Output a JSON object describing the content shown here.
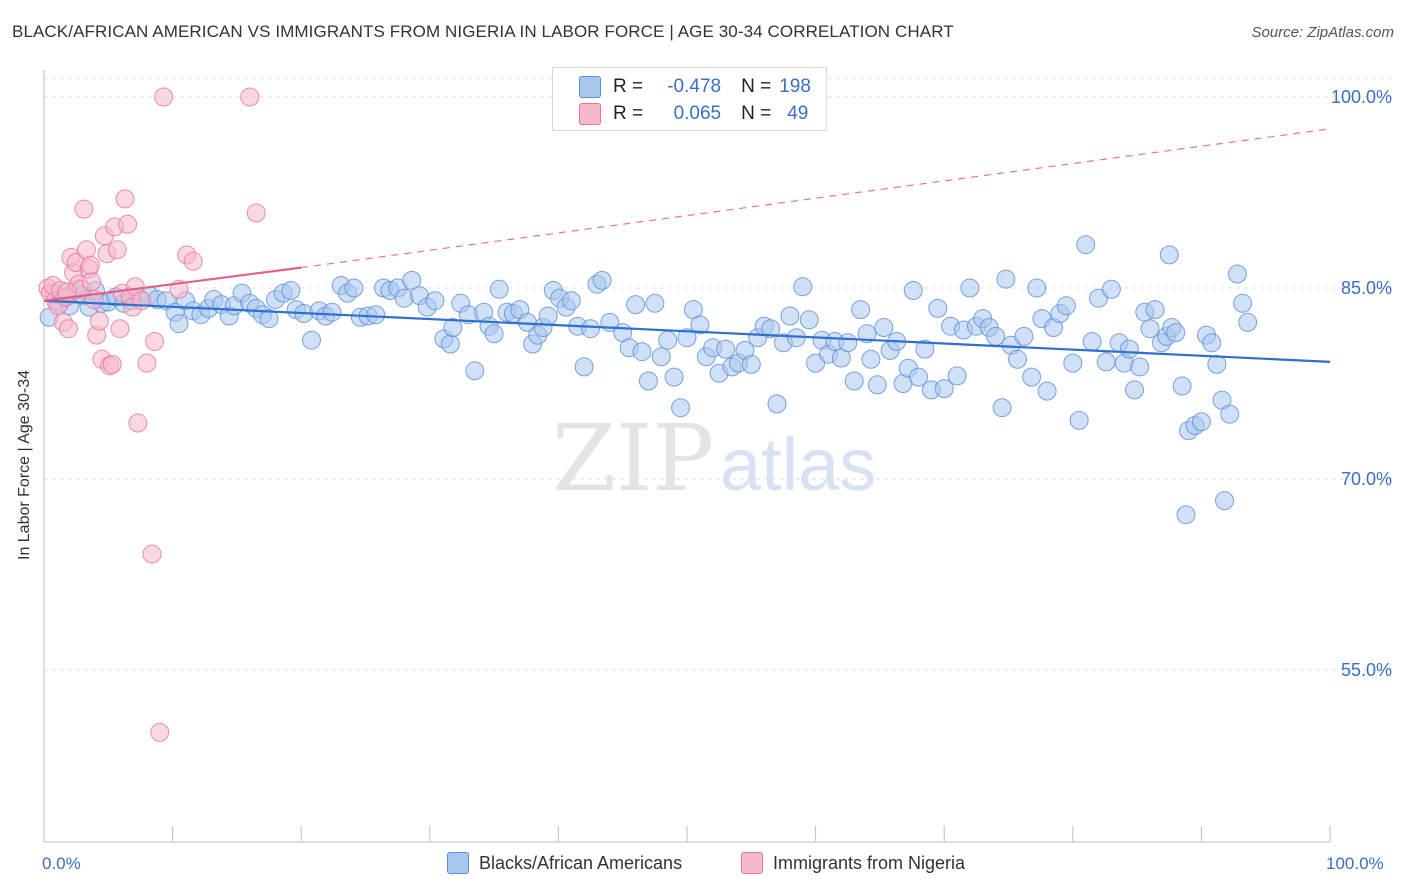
{
  "title": "BLACK/AFRICAN AMERICAN VS IMMIGRANTS FROM NIGERIA IN LABOR FORCE | AGE 30-34 CORRELATION CHART",
  "source": "Source: ZipAtlas.com",
  "watermark": {
    "zip": "ZIP",
    "atlas": "atlas"
  },
  "legend_top": {
    "rows": [
      {
        "r_label": "R =",
        "r_value": "-0.478",
        "n_label": "N =",
        "n_value": "198",
        "color": "#a9c6ee"
      },
      {
        "r_label": "R =",
        "r_value": "0.065",
        "n_label": "N =",
        "n_value": "49",
        "color": "#f6b8cb"
      }
    ]
  },
  "legend_bottom": {
    "items": [
      {
        "label": "Blacks/African Americans",
        "color": "#a9c6ee"
      },
      {
        "label": "Immigrants from Nigeria",
        "color": "#f6b8cb"
      }
    ]
  },
  "x_axis": {
    "min_label": "0.0%",
    "max_label": "100.0%"
  },
  "y_axis_label": "In Labor Force | Age 30-34",
  "chart_data": {
    "type": "scatter",
    "title": "BLACK/AFRICAN AMERICAN VS IMMIGRANTS FROM NIGERIA IN LABOR FORCE | AGE 30-34 CORRELATION CHART",
    "xlabel": "",
    "ylabel": "In Labor Force | Age 30-34",
    "xlim": [
      0,
      100
    ],
    "ylim": [
      40,
      101
    ],
    "yticks": [
      {
        "value": 100,
        "label": "100.0%"
      },
      {
        "value": 85,
        "label": "85.0%"
      },
      {
        "value": 70,
        "label": "70.0%"
      },
      {
        "value": 55,
        "label": "55.0%"
      }
    ],
    "grid": true,
    "legend_position": "bottom",
    "series": [
      {
        "name": "Blacks/African Americans",
        "color": "#5b8fd6",
        "fill": "#a9c6ee",
        "trend": {
          "x": [
            0,
            100
          ],
          "y": [
            84.0,
            79.2
          ]
        },
        "points": [
          [
            0.4,
            82.7
          ],
          [
            0.8,
            84.5
          ],
          [
            1.2,
            83.8
          ],
          [
            1.6,
            84.2
          ],
          [
            2.0,
            83.6
          ],
          [
            2.4,
            84.8
          ],
          [
            3.0,
            84.4
          ],
          [
            3.5,
            83.5
          ],
          [
            4.0,
            84.8
          ],
          [
            4.5,
            83.8
          ],
          [
            5.0,
            83.9
          ],
          [
            5.6,
            84.3
          ],
          [
            6.2,
            83.8
          ],
          [
            6.8,
            84.0
          ],
          [
            7.4,
            84.2
          ],
          [
            8.2,
            84.4
          ],
          [
            8.8,
            84.1
          ],
          [
            9.5,
            84.0
          ],
          [
            10.2,
            83.1
          ],
          [
            10.5,
            82.2
          ],
          [
            11.0,
            84.0
          ],
          [
            11.6,
            83.2
          ],
          [
            12.2,
            82.9
          ],
          [
            12.8,
            83.4
          ],
          [
            13.2,
            84.1
          ],
          [
            13.8,
            83.7
          ],
          [
            14.4,
            82.8
          ],
          [
            14.8,
            83.6
          ],
          [
            15.4,
            84.6
          ],
          [
            16.0,
            83.8
          ],
          [
            16.5,
            83.4
          ],
          [
            17.0,
            82.9
          ],
          [
            17.5,
            82.6
          ],
          [
            18.0,
            84.1
          ],
          [
            18.6,
            84.6
          ],
          [
            19.2,
            84.8
          ],
          [
            19.6,
            83.3
          ],
          [
            20.2,
            83.0
          ],
          [
            20.8,
            80.9
          ],
          [
            21.4,
            83.2
          ],
          [
            21.9,
            82.8
          ],
          [
            22.4,
            83.1
          ],
          [
            23.1,
            85.2
          ],
          [
            23.6,
            84.6
          ],
          [
            24.1,
            85.0
          ],
          [
            24.6,
            82.7
          ],
          [
            25.2,
            82.8
          ],
          [
            25.8,
            82.9
          ],
          [
            26.4,
            85.0
          ],
          [
            26.9,
            84.8
          ],
          [
            27.5,
            85.0
          ],
          [
            28.0,
            84.2
          ],
          [
            28.6,
            85.6
          ],
          [
            29.2,
            84.4
          ],
          [
            29.8,
            83.5
          ],
          [
            30.4,
            84.0
          ],
          [
            31.1,
            81.0
          ],
          [
            31.6,
            80.6
          ],
          [
            31.8,
            81.9
          ],
          [
            32.4,
            83.8
          ],
          [
            33.0,
            82.9
          ],
          [
            33.5,
            78.5
          ],
          [
            34.2,
            83.1
          ],
          [
            34.6,
            82.0
          ],
          [
            35.0,
            81.4
          ],
          [
            35.4,
            84.9
          ],
          [
            36.0,
            83.1
          ],
          [
            36.5,
            83.0
          ],
          [
            37.0,
            83.3
          ],
          [
            37.6,
            82.3
          ],
          [
            38.0,
            80.6
          ],
          [
            38.4,
            81.3
          ],
          [
            38.8,
            81.9
          ],
          [
            39.2,
            82.8
          ],
          [
            39.6,
            84.8
          ],
          [
            40.1,
            84.2
          ],
          [
            40.6,
            83.5
          ],
          [
            41.0,
            84.0
          ],
          [
            41.5,
            82.0
          ],
          [
            42.0,
            78.8
          ],
          [
            42.5,
            81.8
          ],
          [
            43.0,
            85.3
          ],
          [
            43.4,
            85.6
          ],
          [
            44.0,
            82.3
          ],
          [
            45.0,
            81.5
          ],
          [
            45.5,
            80.3
          ],
          [
            46.0,
            83.7
          ],
          [
            46.5,
            80.0
          ],
          [
            47.0,
            77.7
          ],
          [
            47.5,
            83.8
          ],
          [
            48.0,
            79.6
          ],
          [
            48.5,
            80.9
          ],
          [
            49.0,
            78.0
          ],
          [
            49.5,
            75.6
          ],
          [
            50.0,
            81.1
          ],
          [
            50.5,
            83.3
          ],
          [
            51.0,
            82.1
          ],
          [
            51.5,
            79.6
          ],
          [
            52.0,
            80.3
          ],
          [
            52.5,
            78.3
          ],
          [
            53.0,
            80.2
          ],
          [
            53.5,
            78.8
          ],
          [
            54.0,
            79.1
          ],
          [
            54.5,
            80.1
          ],
          [
            55.0,
            79.0
          ],
          [
            55.5,
            81.1
          ],
          [
            56.0,
            82.0
          ],
          [
            56.5,
            81.8
          ],
          [
            57.0,
            75.9
          ],
          [
            57.5,
            80.7
          ],
          [
            58.0,
            82.8
          ],
          [
            58.5,
            81.1
          ],
          [
            59.0,
            85.1
          ],
          [
            59.5,
            82.5
          ],
          [
            60.0,
            79.1
          ],
          [
            60.5,
            80.9
          ],
          [
            61.0,
            79.8
          ],
          [
            61.5,
            80.8
          ],
          [
            62.0,
            79.5
          ],
          [
            62.5,
            80.7
          ],
          [
            63.0,
            77.7
          ],
          [
            63.5,
            83.3
          ],
          [
            64.0,
            81.4
          ],
          [
            64.3,
            79.4
          ],
          [
            64.8,
            77.4
          ],
          [
            65.3,
            81.9
          ],
          [
            65.8,
            80.1
          ],
          [
            66.3,
            80.8
          ],
          [
            66.8,
            77.5
          ],
          [
            67.2,
            78.7
          ],
          [
            67.6,
            84.8
          ],
          [
            68.0,
            78.0
          ],
          [
            68.5,
            80.2
          ],
          [
            69.0,
            77.0
          ],
          [
            69.5,
            83.4
          ],
          [
            70.0,
            77.1
          ],
          [
            70.5,
            82.0
          ],
          [
            71.0,
            78.1
          ],
          [
            71.5,
            81.7
          ],
          [
            72.0,
            85.0
          ],
          [
            72.5,
            82.0
          ],
          [
            73.0,
            82.6
          ],
          [
            73.5,
            81.9
          ],
          [
            74.0,
            81.2
          ],
          [
            74.5,
            75.6
          ],
          [
            74.8,
            85.7
          ],
          [
            75.2,
            80.5
          ],
          [
            75.7,
            79.4
          ],
          [
            76.2,
            81.2
          ],
          [
            76.8,
            78.0
          ],
          [
            77.2,
            85.0
          ],
          [
            77.6,
            82.6
          ],
          [
            78.0,
            76.9
          ],
          [
            78.5,
            81.9
          ],
          [
            79.0,
            83.0
          ],
          [
            79.5,
            83.6
          ],
          [
            80.0,
            79.1
          ],
          [
            80.5,
            74.6
          ],
          [
            81.0,
            88.4
          ],
          [
            81.5,
            80.8
          ],
          [
            82.0,
            84.2
          ],
          [
            82.6,
            79.2
          ],
          [
            83.0,
            84.9
          ],
          [
            83.6,
            80.7
          ],
          [
            84.0,
            79.1
          ],
          [
            84.4,
            80.2
          ],
          [
            84.8,
            77.0
          ],
          [
            85.2,
            78.8
          ],
          [
            85.6,
            83.1
          ],
          [
            86.0,
            81.8
          ],
          [
            86.4,
            83.3
          ],
          [
            86.9,
            80.7
          ],
          [
            87.3,
            81.2
          ],
          [
            87.7,
            81.9
          ],
          [
            88.0,
            81.5
          ],
          [
            88.5,
            77.3
          ],
          [
            89.0,
            73.8
          ],
          [
            89.5,
            74.2
          ],
          [
            90.0,
            74.5
          ],
          [
            90.4,
            81.3
          ],
          [
            87.5,
            87.6
          ],
          [
            88.8,
            67.2
          ],
          [
            90.8,
            80.7
          ],
          [
            91.2,
            79.0
          ],
          [
            91.6,
            76.2
          ],
          [
            91.8,
            68.3
          ],
          [
            92.2,
            75.1
          ],
          [
            92.8,
            86.1
          ],
          [
            93.2,
            83.8
          ],
          [
            93.6,
            82.3
          ]
        ]
      },
      {
        "name": "Immigrants from Nigeria",
        "color": "#e8739a",
        "fill": "#f6b8cb",
        "trend": {
          "x": [
            0,
            20
          ],
          "y": [
            84.0,
            86.6
          ]
        },
        "trend_dashed": {
          "x": [
            20,
            100
          ],
          "y": [
            86.6,
            97.5
          ]
        },
        "points": [
          [
            0.3,
            85.0
          ],
          [
            0.5,
            84.6
          ],
          [
            0.7,
            85.2
          ],
          [
            0.9,
            84.0
          ],
          [
            1.1,
            83.6
          ],
          [
            1.3,
            84.8
          ],
          [
            1.5,
            82.3
          ],
          [
            1.7,
            84.3
          ],
          [
            1.9,
            81.8
          ],
          [
            2.1,
            87.4
          ],
          [
            2.3,
            86.2
          ],
          [
            2.5,
            87.0
          ],
          [
            2.7,
            85.3
          ],
          [
            2.9,
            84.9
          ],
          [
            3.1,
            91.2
          ],
          [
            3.3,
            88.0
          ],
          [
            3.5,
            86.5
          ],
          [
            3.7,
            85.5
          ],
          [
            3.9,
            84.1
          ],
          [
            4.1,
            81.3
          ],
          [
            4.3,
            82.4
          ],
          [
            4.5,
            79.4
          ],
          [
            4.7,
            89.1
          ],
          [
            4.9,
            87.7
          ],
          [
            5.1,
            78.9
          ],
          [
            5.3,
            79.0
          ],
          [
            5.5,
            89.8
          ],
          [
            5.7,
            88.0
          ],
          [
            5.9,
            81.8
          ],
          [
            6.1,
            84.6
          ],
          [
            6.3,
            92.0
          ],
          [
            6.5,
            90.0
          ],
          [
            6.7,
            84.3
          ],
          [
            6.9,
            83.5
          ],
          [
            7.1,
            85.1
          ],
          [
            7.3,
            74.4
          ],
          [
            7.6,
            84.0
          ],
          [
            8.0,
            79.1
          ],
          [
            8.4,
            64.1
          ],
          [
            8.6,
            80.8
          ],
          [
            9.0,
            50.1
          ],
          [
            9.3,
            100.0
          ],
          [
            10.5,
            84.9
          ],
          [
            11.1,
            87.6
          ],
          [
            11.6,
            87.1
          ],
          [
            16.0,
            100.0
          ],
          [
            16.5,
            90.9
          ],
          [
            3.6,
            86.8
          ],
          [
            1.8,
            84.7
          ]
        ]
      }
    ]
  }
}
